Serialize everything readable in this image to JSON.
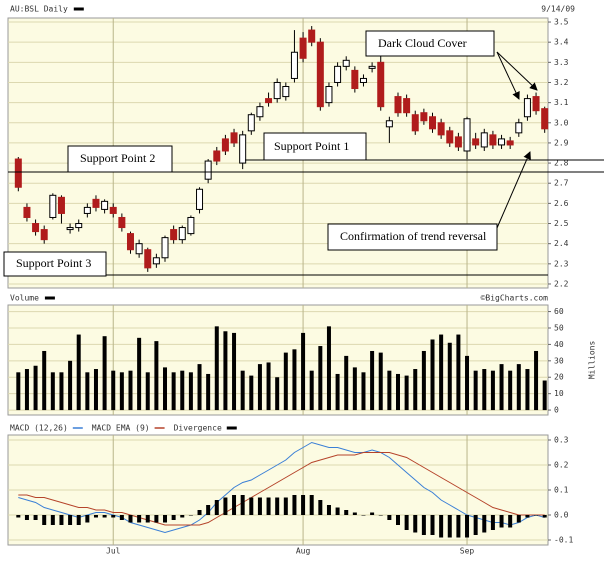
{
  "chart_data": [
    {
      "type": "candlestick",
      "title": "AU:BSL Daily",
      "date": "9/14/09",
      "categories": [
        null,
        null,
        null,
        null,
        null,
        null,
        null,
        null,
        null,
        null,
        null,
        "Jul",
        null,
        null,
        null,
        null,
        null,
        null,
        null,
        null,
        null,
        null,
        null,
        null,
        null,
        null,
        null,
        null,
        null,
        null,
        null,
        null,
        null,
        "Aug",
        null,
        null,
        null,
        null,
        null,
        null,
        null,
        null,
        null,
        null,
        null,
        null,
        null,
        null,
        null,
        null,
        null,
        null,
        "Sep",
        null,
        null,
        null,
        null,
        null,
        null,
        null,
        null,
        null
      ],
      "open": [
        2.82,
        2.58,
        2.5,
        2.47,
        2.53,
        2.63,
        2.47,
        2.48,
        2.55,
        2.62,
        2.57,
        2.58,
        2.53,
        2.45,
        2.35,
        2.37,
        2.3,
        2.33,
        2.47,
        2.42,
        2.45,
        2.57,
        2.72,
        2.86,
        2.92,
        2.95,
        2.8,
        2.96,
        3.03,
        3.12,
        3.12,
        3.13,
        3.22,
        3.42,
        3.46,
        3.4,
        3.1,
        3.2,
        3.28,
        3.26,
        3.2,
        3.27,
        3.3,
        2.98,
        3.13,
        3.12,
        3.04,
        3.05,
        3.03,
        3.0,
        2.96,
        2.93,
        2.86,
        2.92,
        2.88,
        2.94,
        2.89,
        2.91,
        2.95,
        3.03,
        3.13,
        3.07
      ],
      "high": [
        2.83,
        2.6,
        2.52,
        2.49,
        2.65,
        2.64,
        2.5,
        2.52,
        2.6,
        2.64,
        2.62,
        2.6,
        2.55,
        2.46,
        2.42,
        2.38,
        2.35,
        2.44,
        2.49,
        2.49,
        2.54,
        2.68,
        2.82,
        2.88,
        2.94,
        2.97,
        2.96,
        3.05,
        3.1,
        3.15,
        3.22,
        3.2,
        3.46,
        3.45,
        3.48,
        3.42,
        3.2,
        3.3,
        3.33,
        3.28,
        3.24,
        3.3,
        3.33,
        3.03,
        3.15,
        3.14,
        3.06,
        3.07,
        3.05,
        3.02,
        2.98,
        2.95,
        3.03,
        2.95,
        2.97,
        2.96,
        2.94,
        2.93,
        3.02,
        3.14,
        3.15,
        3.08
      ],
      "low": [
        2.66,
        2.51,
        2.44,
        2.4,
        2.52,
        2.5,
        2.45,
        2.46,
        2.53,
        2.56,
        2.55,
        2.53,
        2.46,
        2.35,
        2.33,
        2.26,
        2.28,
        2.31,
        2.4,
        2.4,
        2.44,
        2.55,
        2.7,
        2.79,
        2.84,
        2.88,
        2.77,
        2.94,
        3.01,
        3.08,
        3.1,
        3.11,
        3.2,
        3.3,
        3.38,
        3.06,
        3.08,
        3.18,
        3.26,
        3.15,
        3.18,
        3.25,
        3.06,
        2.9,
        3.03,
        3.03,
        2.94,
        2.99,
        2.95,
        2.92,
        2.88,
        2.86,
        2.82,
        2.87,
        2.86,
        2.87,
        2.87,
        2.87,
        2.93,
        3.01,
        3.04,
        2.95
      ],
      "close": [
        2.68,
        2.53,
        2.46,
        2.42,
        2.64,
        2.55,
        2.48,
        2.5,
        2.58,
        2.58,
        2.61,
        2.55,
        2.48,
        2.37,
        2.4,
        2.28,
        2.33,
        2.43,
        2.42,
        2.48,
        2.53,
        2.67,
        2.81,
        2.81,
        2.86,
        2.9,
        2.94,
        3.04,
        3.08,
        3.1,
        3.2,
        3.18,
        3.35,
        3.32,
        3.4,
        3.08,
        3.18,
        3.28,
        3.31,
        3.17,
        3.22,
        3.28,
        3.08,
        3.01,
        3.05,
        3.05,
        2.96,
        3.01,
        2.97,
        2.94,
        2.9,
        2.88,
        3.02,
        2.89,
        2.95,
        2.89,
        2.92,
        2.89,
        3.0,
        3.12,
        3.06,
        2.97
      ],
      "up_color": "#ffffff",
      "down_color": "#b01c1c",
      "color": "#000000",
      "ylim": [
        2.18,
        3.52
      ],
      "yticks": [
        2.2,
        2.3,
        2.4,
        2.5,
        2.6,
        2.7,
        2.8,
        2.9,
        {
          "value": 3,
          "label": "3.0"
        },
        3.1,
        3.2,
        3.3,
        3.4,
        3.5
      ],
      "grid": true,
      "annotations": [
        "Dark Cloud Cover",
        "Support Point 1",
        "Support Point 2",
        "Support Point 3",
        "Confirmation of trend reversal"
      ]
    },
    {
      "type": "bar",
      "title": "Volume",
      "source": "©BigCharts.com",
      "ylabel": "Millions",
      "color": "#000000",
      "values": [
        23,
        25,
        27,
        36,
        23,
        23,
        30,
        46,
        23,
        25,
        45,
        24,
        23,
        24,
        44,
        23,
        42,
        26,
        23,
        24,
        23,
        28,
        22,
        51,
        48,
        47,
        24,
        21,
        28,
        29,
        20,
        35,
        37,
        47,
        24,
        39,
        51,
        22,
        33,
        26,
        23,
        36,
        35,
        24,
        22,
        21,
        25,
        36,
        43,
        46,
        41,
        46,
        33,
        24,
        25,
        24,
        28,
        24,
        28,
        25,
        36,
        18
      ],
      "ylim": [
        -3,
        64
      ],
      "yticks": [
        0,
        10,
        20,
        30,
        40,
        50,
        60
      ],
      "grid": true
    },
    {
      "type": "line",
      "title": "MACD (12,26)",
      "series": [
        {
          "name": "MACD (12,26)",
          "color": "#3a7fd6",
          "values": [
            0.07,
            0.06,
            0.05,
            0.03,
            0.02,
            0.01,
            0.0,
            -0.01,
            0.0,
            0.01,
            0.01,
            0.0,
            -0.01,
            -0.03,
            -0.04,
            -0.05,
            -0.06,
            -0.07,
            -0.06,
            -0.05,
            -0.04,
            -0.02,
            0.01,
            0.05,
            0.08,
            0.11,
            0.13,
            0.14,
            0.16,
            0.18,
            0.2,
            0.22,
            0.25,
            0.27,
            0.29,
            0.28,
            0.27,
            0.27,
            0.26,
            0.25,
            0.25,
            0.26,
            0.25,
            0.23,
            0.2,
            0.17,
            0.14,
            0.11,
            0.09,
            0.06,
            0.04,
            0.02,
            0.0,
            -0.01,
            -0.02,
            -0.03,
            -0.03,
            -0.04,
            -0.03,
            -0.01,
            0.0,
            -0.01
          ]
        },
        {
          "name": "MACD EMA (9)",
          "color": "#b5432a",
          "values": [
            0.08,
            0.08,
            0.07,
            0.07,
            0.06,
            0.05,
            0.04,
            0.03,
            0.03,
            0.02,
            0.02,
            0.01,
            0.01,
            0.0,
            -0.01,
            -0.02,
            -0.03,
            -0.04,
            -0.04,
            -0.04,
            -0.04,
            -0.04,
            -0.03,
            -0.01,
            0.01,
            0.03,
            0.05,
            0.07,
            0.09,
            0.11,
            0.13,
            0.15,
            0.17,
            0.19,
            0.21,
            0.22,
            0.23,
            0.24,
            0.24,
            0.24,
            0.25,
            0.25,
            0.25,
            0.25,
            0.24,
            0.23,
            0.21,
            0.19,
            0.17,
            0.15,
            0.13,
            0.11,
            0.09,
            0.07,
            0.05,
            0.03,
            0.02,
            0.01,
            0.0,
            0.0,
            0.0,
            0.0
          ]
        },
        {
          "name": "Divergence",
          "color": "#000000",
          "kind": "bar",
          "values": [
            -0.01,
            -0.02,
            -0.02,
            -0.04,
            -0.04,
            -0.04,
            -0.04,
            -0.04,
            -0.03,
            -0.01,
            -0.01,
            -0.01,
            -0.02,
            -0.03,
            -0.03,
            -0.03,
            -0.03,
            -0.03,
            -0.02,
            -0.01,
            0.0,
            0.02,
            0.04,
            0.06,
            0.07,
            0.08,
            0.08,
            0.07,
            0.07,
            0.07,
            0.07,
            0.07,
            0.08,
            0.08,
            0.08,
            0.06,
            0.04,
            0.03,
            0.02,
            0.01,
            0.0,
            0.01,
            0.0,
            -0.02,
            -0.04,
            -0.06,
            -0.07,
            -0.08,
            -0.08,
            -0.09,
            -0.09,
            -0.09,
            -0.09,
            -0.08,
            -0.07,
            -0.06,
            -0.05,
            -0.05,
            -0.03,
            -0.01,
            0.0,
            -0.01
          ]
        }
      ],
      "ylim": [
        -0.12,
        0.32
      ],
      "yticks": [
        0.3,
        0.2,
        0.1,
        {
          "value": 0,
          "label": "0.0"
        },
        -0.1
      ],
      "grid": true
    }
  ]
}
